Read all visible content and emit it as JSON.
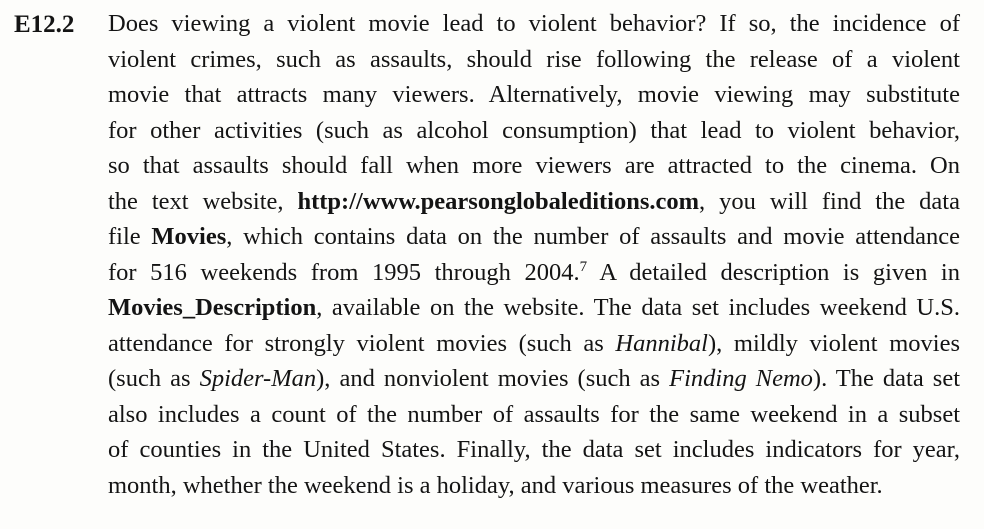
{
  "exercise": {
    "number": "E12.2"
  },
  "paragraph": {
    "l1": "Does viewing a violent movie lead to violent behavior? If so, the incidence of",
    "l2": "violent crimes, such as assaults, should rise following the release of a violent",
    "l3": "movie that attracts many viewers. Alternatively, movie viewing may substitute",
    "l4": "for other activities (such as alcohol consumption) that lead to violent behavior,",
    "l5": "so that assaults should fall when more viewers are attracted to the cinema. On",
    "l6a": "the text website, ",
    "l6_url": "http://www.pearsonglobaleditions.com",
    "l6b": ", you will find the data",
    "l7a": "file ",
    "l7_file": "Movies",
    "l7b": ", which contains data on the number of assaults and movie attendance",
    "l8a": "for 516 weekends from 1995 through 2004.",
    "l8_footnote": "7",
    "l8b": " A detailed description is given in",
    "l9_file": "Movies_Description",
    "l9b": ", available on the website. The data set includes weekend U.S.",
    "l10a": "attendance for strongly violent movies (such as ",
    "l10_movie": "Hannibal",
    "l10b": "), mildly violent movies",
    "l11a": "(such as ",
    "l11_movie": "Spider-Man",
    "l11b": "), and nonviolent movies (such as ",
    "l11_movie2": "Finding Nemo",
    "l11c": "). The data set",
    "l12": "also includes a count of the number of assaults for the same weekend in a subset",
    "l13": "of counties in the United States. Finally, the data set includes indicators for year,",
    "l14": "month, whether the weekend is a holiday, and various measures of the weather."
  }
}
